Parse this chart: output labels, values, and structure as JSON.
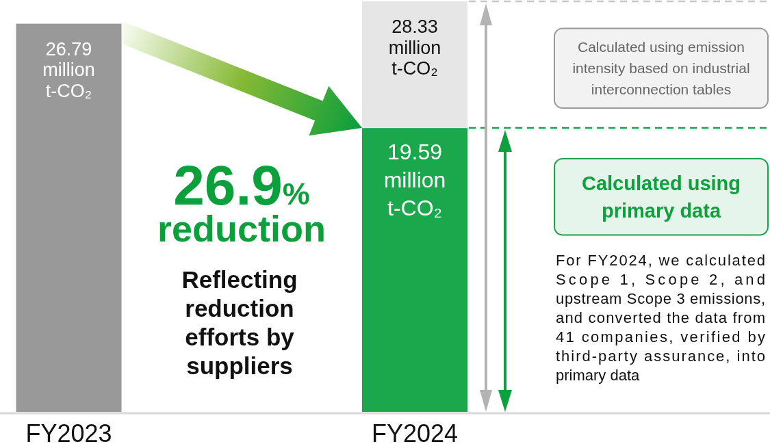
{
  "chart_data": {
    "type": "bar",
    "categories": [
      "FY2023",
      "FY2024"
    ],
    "stacked": true,
    "series": [
      {
        "values": [
          26.79,
          19.59
        ],
        "colors": [
          "#999999",
          "#1ba84c"
        ],
        "value_labels": [
          "26.79 million t-CO₂",
          "19.59 million t-CO₂"
        ]
      },
      {
        "values": [
          null,
          8.74
        ],
        "color": "#e6e6e6"
      }
    ],
    "totals": [
      null,
      "28.33 million t-CO₂"
    ],
    "ref_lines": [
      {
        "axis": "y",
        "value": 28.33,
        "color": "#c8c8c8",
        "line_style": "dashed"
      },
      {
        "axis": "y",
        "value": 19.59,
        "color": "#1aa34a",
        "line_style": "dashed"
      }
    ],
    "annotations": [
      "26.9% reduction",
      "Reflecting reduction efforts by suppliers",
      "Calculated using emission intensity based on industrial interconnection tables",
      "Calculated using primary data",
      "For FY2024, we calculated Scope 1, Scope 2, and upstream Scope 3 emissions, and converted the data from 41 companies, verified by third-party assurance, into primary data"
    ]
  }
}
